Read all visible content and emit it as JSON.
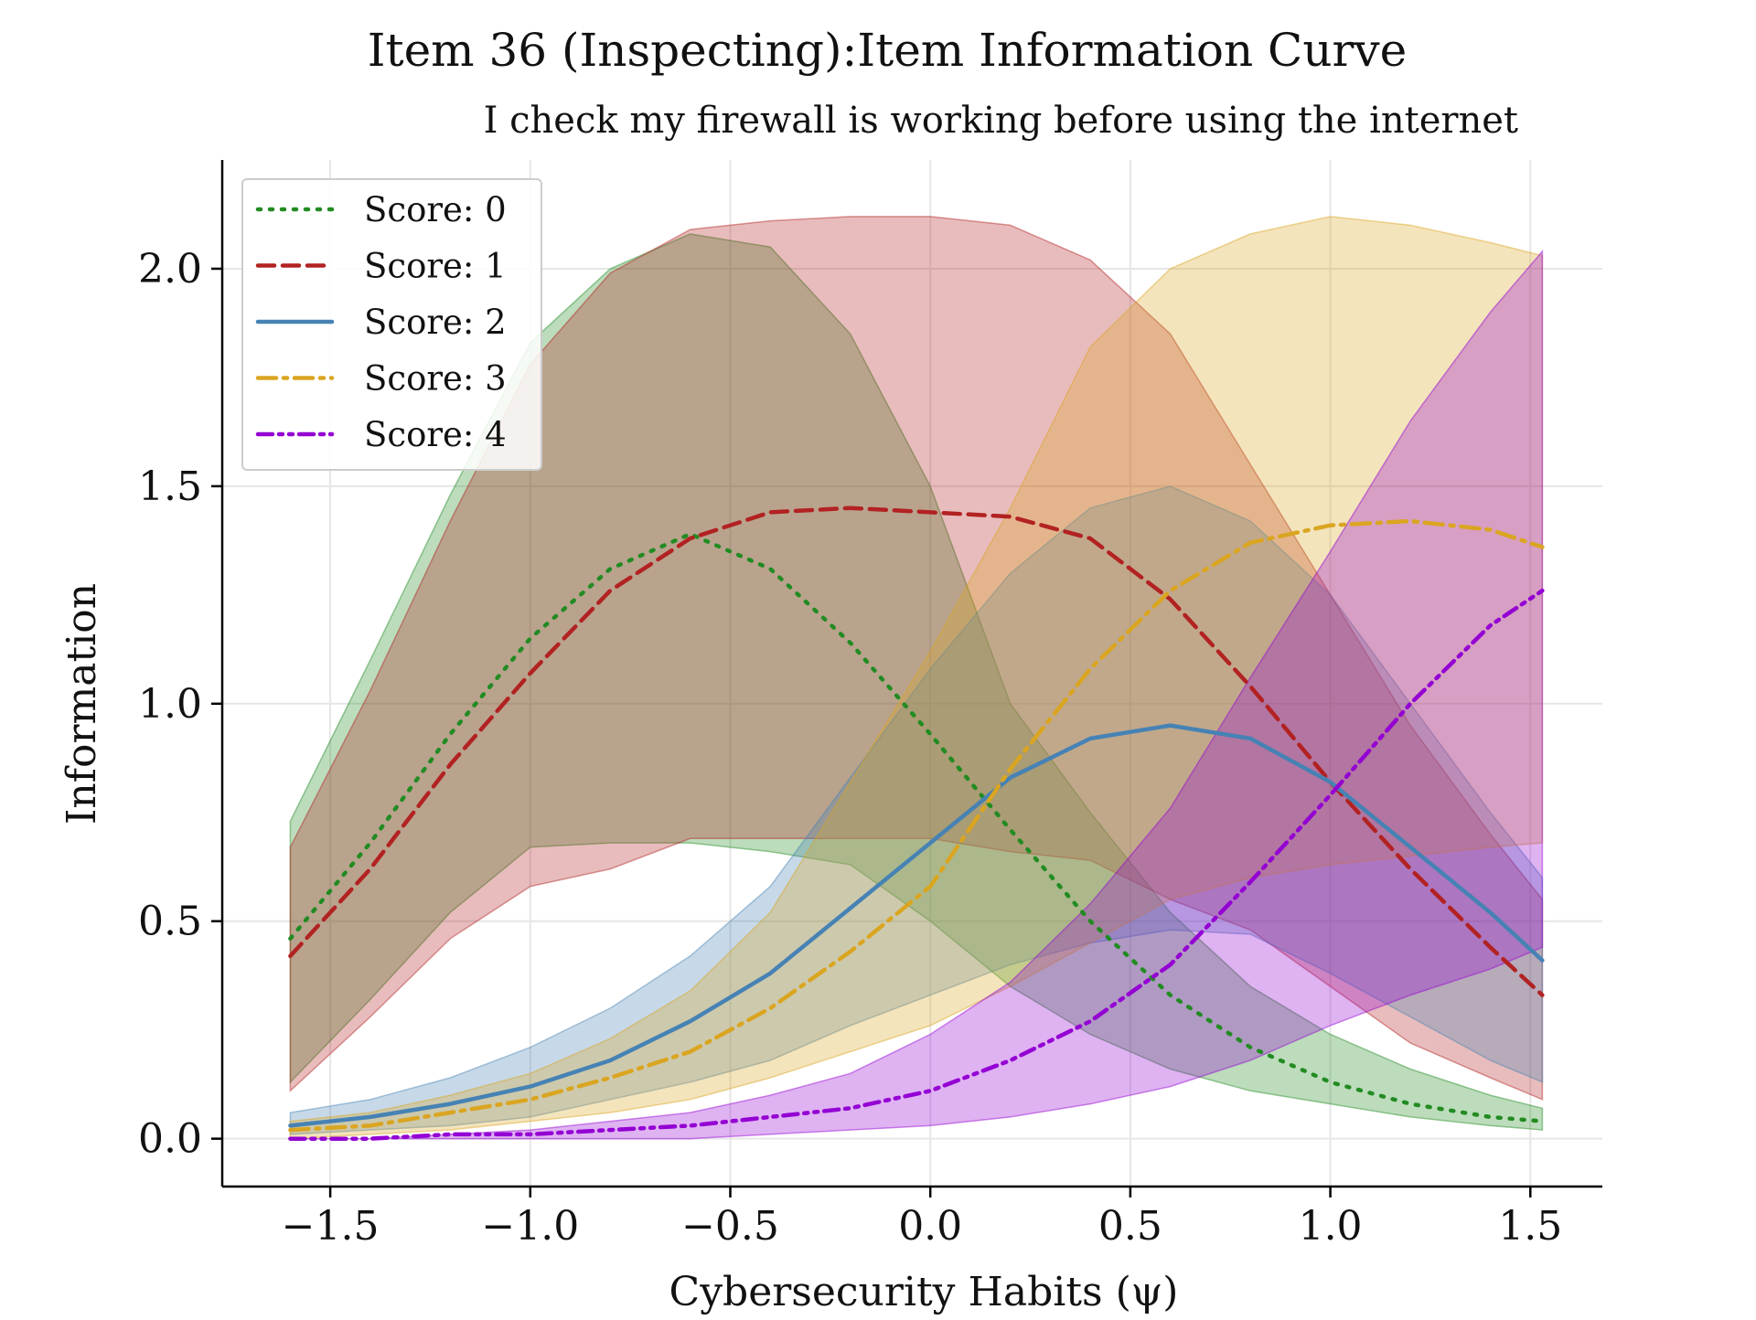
{
  "chart_data": {
    "type": "line",
    "title": "Item 36 (Inspecting):Item Information Curve",
    "subtitle": "I check my firewall is working before using the internet",
    "xlabel": "Cybersecurity Habits (ψ)",
    "ylabel": "Information",
    "xlim": [
      -1.77,
      1.68
    ],
    "ylim": [
      -0.11,
      2.25
    ],
    "xticks": [
      -1.5,
      -1.0,
      -0.5,
      0.0,
      0.5,
      1.0,
      1.5
    ],
    "xtick_labels": [
      "−1.5",
      "−1.0",
      "−0.5",
      "0.0",
      "0.5",
      "1.0",
      "1.5"
    ],
    "yticks": [
      0.0,
      0.5,
      1.0,
      1.5,
      2.0
    ],
    "ytick_labels": [
      "0.0",
      "0.5",
      "1.0",
      "1.5",
      "2.0"
    ],
    "grid": true,
    "legend_position": "top-left",
    "x": [
      -1.6,
      -1.4,
      -1.2,
      -1.0,
      -0.8,
      -0.6,
      -0.4,
      -0.2,
      0.0,
      0.2,
      0.4,
      0.6,
      0.8,
      1.0,
      1.2,
      1.4,
      1.53
    ],
    "series": [
      {
        "name": "Score: 0",
        "color": "#228b22",
        "dash": "dotted",
        "values": [
          0.46,
          0.68,
          0.93,
          1.15,
          1.31,
          1.39,
          1.31,
          1.14,
          0.93,
          0.71,
          0.5,
          0.33,
          0.21,
          0.13,
          0.08,
          0.05,
          0.04
        ],
        "lower": [
          0.13,
          0.32,
          0.52,
          0.67,
          0.68,
          0.68,
          0.66,
          0.63,
          0.5,
          0.35,
          0.24,
          0.16,
          0.11,
          0.08,
          0.05,
          0.03,
          0.02
        ],
        "upper": [
          0.73,
          1.1,
          1.48,
          1.83,
          2.0,
          2.08,
          2.05,
          1.85,
          1.5,
          1.0,
          0.75,
          0.52,
          0.35,
          0.24,
          0.16,
          0.1,
          0.07
        ]
      },
      {
        "name": "Score: 1",
        "color": "#b22222",
        "dash": "dashed",
        "values": [
          0.42,
          0.62,
          0.86,
          1.07,
          1.26,
          1.38,
          1.44,
          1.45,
          1.44,
          1.43,
          1.38,
          1.24,
          1.04,
          0.82,
          0.62,
          0.44,
          0.33
        ],
        "lower": [
          0.11,
          0.28,
          0.46,
          0.58,
          0.62,
          0.69,
          0.69,
          0.69,
          0.69,
          0.66,
          0.64,
          0.55,
          0.48,
          0.35,
          0.22,
          0.14,
          0.09
        ],
        "upper": [
          0.67,
          1.03,
          1.42,
          1.78,
          1.99,
          2.09,
          2.11,
          2.12,
          2.12,
          2.1,
          2.02,
          1.85,
          1.55,
          1.25,
          0.95,
          0.7,
          0.55
        ]
      },
      {
        "name": "Score: 2",
        "color": "#4682b4",
        "dash": "solid",
        "values": [
          0.03,
          0.05,
          0.08,
          0.12,
          0.18,
          0.27,
          0.38,
          0.53,
          0.68,
          0.83,
          0.92,
          0.95,
          0.92,
          0.82,
          0.67,
          0.52,
          0.41
        ],
        "lower": [
          0.01,
          0.02,
          0.03,
          0.05,
          0.09,
          0.13,
          0.18,
          0.26,
          0.33,
          0.4,
          0.45,
          0.48,
          0.47,
          0.38,
          0.28,
          0.18,
          0.13
        ],
        "upper": [
          0.06,
          0.09,
          0.14,
          0.21,
          0.3,
          0.42,
          0.58,
          0.83,
          1.08,
          1.3,
          1.45,
          1.5,
          1.42,
          1.25,
          1.0,
          0.75,
          0.6
        ]
      },
      {
        "name": "Score: 3",
        "color": "#daa520",
        "dash": "dashdot",
        "values": [
          0.02,
          0.03,
          0.06,
          0.09,
          0.14,
          0.2,
          0.3,
          0.43,
          0.58,
          0.85,
          1.08,
          1.26,
          1.37,
          1.41,
          1.42,
          1.4,
          1.36
        ],
        "lower": [
          0.0,
          0.01,
          0.02,
          0.04,
          0.06,
          0.09,
          0.14,
          0.2,
          0.26,
          0.35,
          0.45,
          0.55,
          0.6,
          0.63,
          0.65,
          0.67,
          0.68
        ],
        "upper": [
          0.04,
          0.06,
          0.1,
          0.15,
          0.23,
          0.34,
          0.52,
          0.82,
          1.12,
          1.45,
          1.82,
          2.0,
          2.08,
          2.12,
          2.1,
          2.06,
          2.03
        ]
      },
      {
        "name": "Score: 4",
        "color": "#9400d3",
        "dash": "dashdotdot",
        "values": [
          0.0,
          0.0,
          0.01,
          0.01,
          0.02,
          0.03,
          0.05,
          0.07,
          0.11,
          0.18,
          0.27,
          0.4,
          0.59,
          0.79,
          1.0,
          1.18,
          1.26
        ],
        "lower": [
          0.0,
          0.0,
          0.0,
          0.0,
          0.0,
          0.0,
          0.01,
          0.02,
          0.03,
          0.05,
          0.08,
          0.12,
          0.18,
          0.26,
          0.33,
          0.39,
          0.44
        ],
        "upper": [
          0.0,
          0.0,
          0.01,
          0.02,
          0.04,
          0.06,
          0.1,
          0.15,
          0.24,
          0.36,
          0.54,
          0.76,
          1.06,
          1.35,
          1.65,
          1.9,
          2.04
        ]
      }
    ]
  }
}
